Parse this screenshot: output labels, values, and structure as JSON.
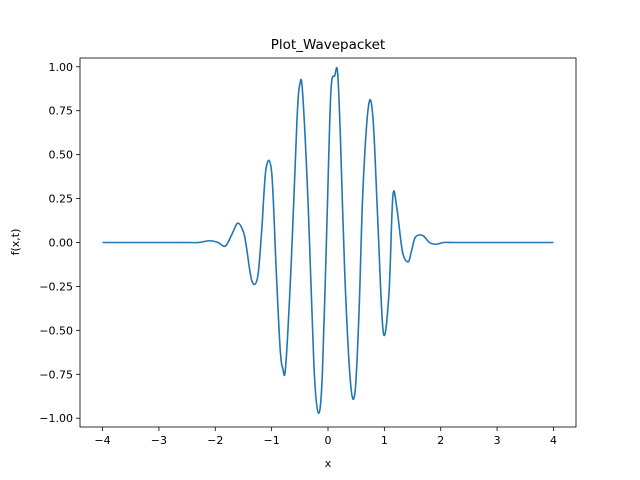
{
  "chart_data": {
    "type": "line",
    "title": "Plot_Wavepacket",
    "xlabel": "x",
    "ylabel": "f(x,t)",
    "xlim": [
      -4.4,
      4.4
    ],
    "ylim": [
      -1.05,
      1.05
    ],
    "xticks": [
      -4,
      -3,
      -2,
      -1,
      0,
      1,
      2,
      3,
      4
    ],
    "xtick_labels": [
      "−4",
      "−3",
      "−2",
      "−1",
      "0",
      "1",
      "2",
      "3",
      "4"
    ],
    "yticks": [
      -1.0,
      -0.75,
      -0.5,
      -0.25,
      0.0,
      0.25,
      0.5,
      0.75,
      1.0
    ],
    "ytick_labels": [
      "−1.00",
      "−0.75",
      "−0.50",
      "−0.25",
      "0.00",
      "0.25",
      "0.50",
      "0.75",
      "1.00"
    ],
    "grid": false,
    "series": [
      {
        "color": "#1f77b4",
        "x": [
          -4.0,
          -2.5,
          -2.3,
          -2.1,
          -1.95,
          -1.82,
          -1.7,
          -1.6,
          -1.5,
          -1.45,
          -1.35,
          -1.25,
          -1.18,
          -1.1,
          -1.0,
          -0.92,
          -0.85,
          -0.8,
          -0.75,
          -0.65,
          -0.55,
          -0.5,
          -0.45,
          -0.35,
          -0.25,
          -0.17,
          -0.1,
          -0.02,
          0.05,
          0.12,
          0.17,
          0.22,
          0.3,
          0.4,
          0.48,
          0.55,
          0.62,
          0.72,
          0.8,
          0.88,
          0.98,
          1.08,
          1.15,
          1.22,
          1.32,
          1.42,
          1.48,
          1.55,
          1.68,
          1.8,
          1.92,
          2.05,
          2.2,
          2.35,
          2.5,
          2.7,
          3.0,
          4.0
        ],
        "y": [
          0.0,
          0.0,
          0.0,
          0.01,
          0.0,
          -0.02,
          0.05,
          0.11,
          0.06,
          -0.02,
          -0.22,
          -0.2,
          0.05,
          0.42,
          0.4,
          -0.15,
          -0.6,
          -0.72,
          -0.7,
          -0.1,
          0.7,
          0.9,
          0.85,
          0.2,
          -0.7,
          -0.97,
          -0.75,
          0.1,
          0.85,
          0.95,
          0.97,
          0.6,
          -0.2,
          -0.8,
          -0.85,
          -0.4,
          0.3,
          0.78,
          0.7,
          0.15,
          -0.51,
          -0.3,
          0.26,
          0.2,
          -0.05,
          -0.11,
          -0.05,
          0.03,
          0.04,
          0.0,
          -0.01,
          0.0,
          0.0,
          0.0,
          0.0,
          0.0,
          0.0,
          0.0
        ]
      }
    ]
  }
}
